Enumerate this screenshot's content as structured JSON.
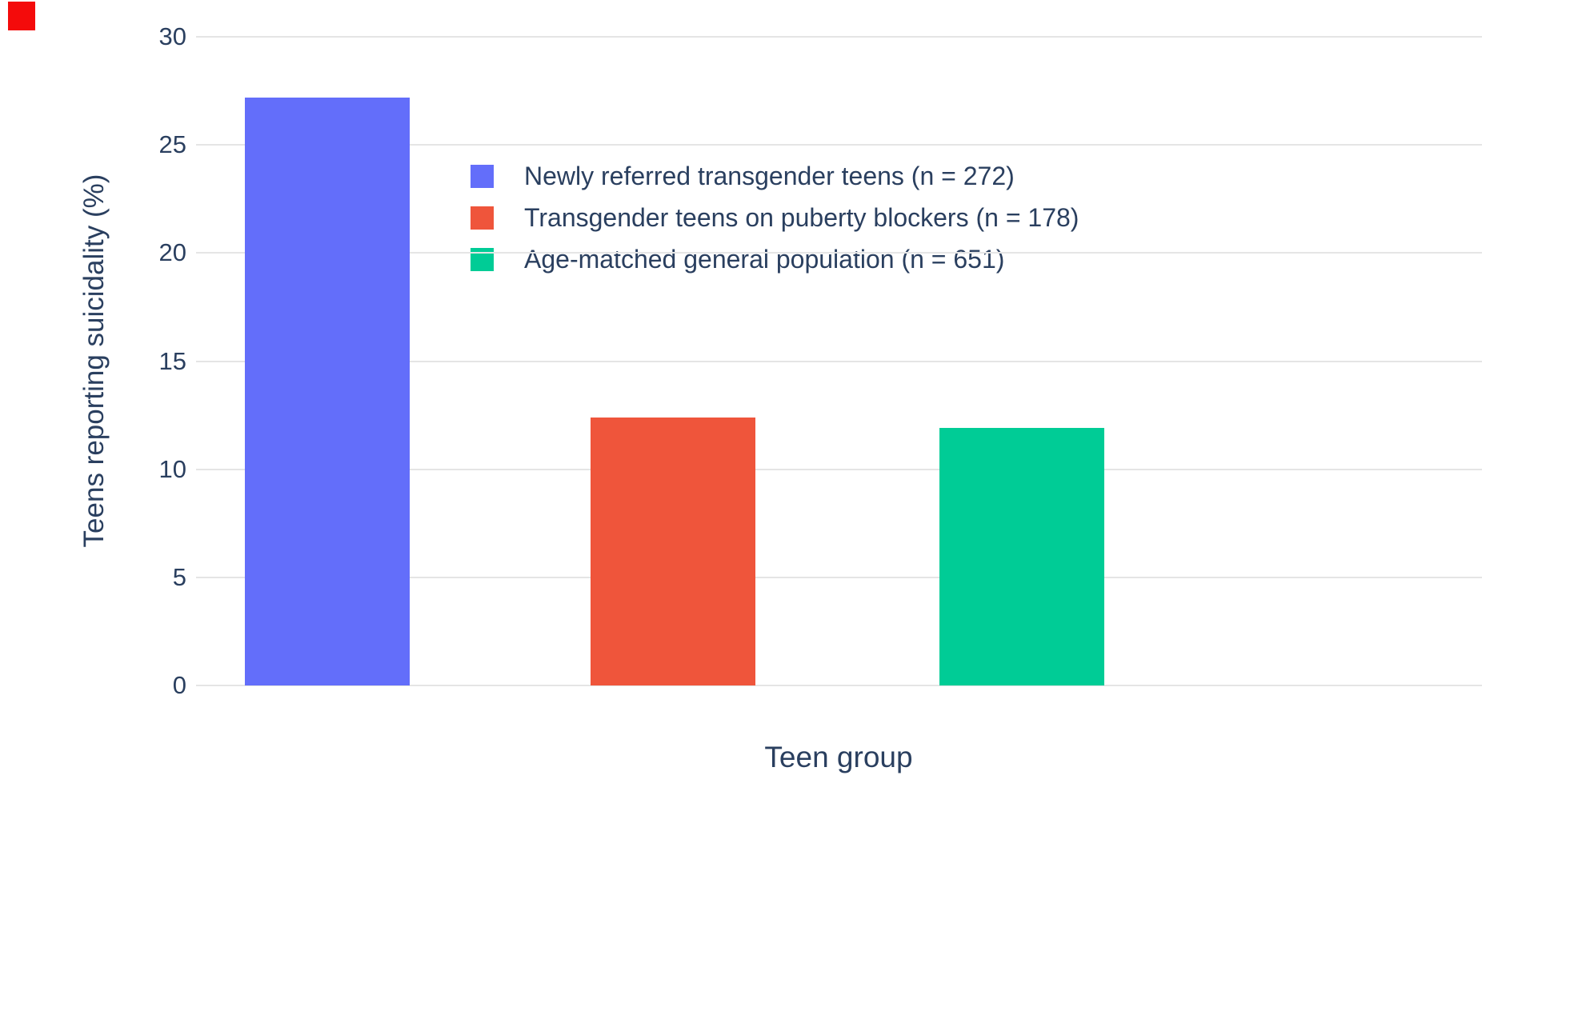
{
  "chart_data": {
    "type": "bar",
    "series": [
      {
        "name": "Newly referred transgender teens (n = 272)",
        "value": 27.2,
        "color": "#636EFA"
      },
      {
        "name": "Transgender teens on puberty blockers (n = 178)",
        "value": 12.4,
        "color": "#EF553B"
      },
      {
        "name": "Age-matched general population (n = 651)",
        "value": 11.9,
        "color": "#00CC96"
      }
    ],
    "title": "",
    "xlabel": "Teen group",
    "ylabel": "Teens reporting suicidality (%)",
    "ylim": [
      0,
      30
    ],
    "yticks": [
      0,
      5,
      10,
      15,
      20,
      25,
      30
    ],
    "grid": true,
    "legend_position": "inside-top-center",
    "background_color": "#ffffff",
    "gridline_color": "#e5e5e5",
    "text_color": "#2a3f5f",
    "corner_marker_color": "#f40b0b"
  }
}
